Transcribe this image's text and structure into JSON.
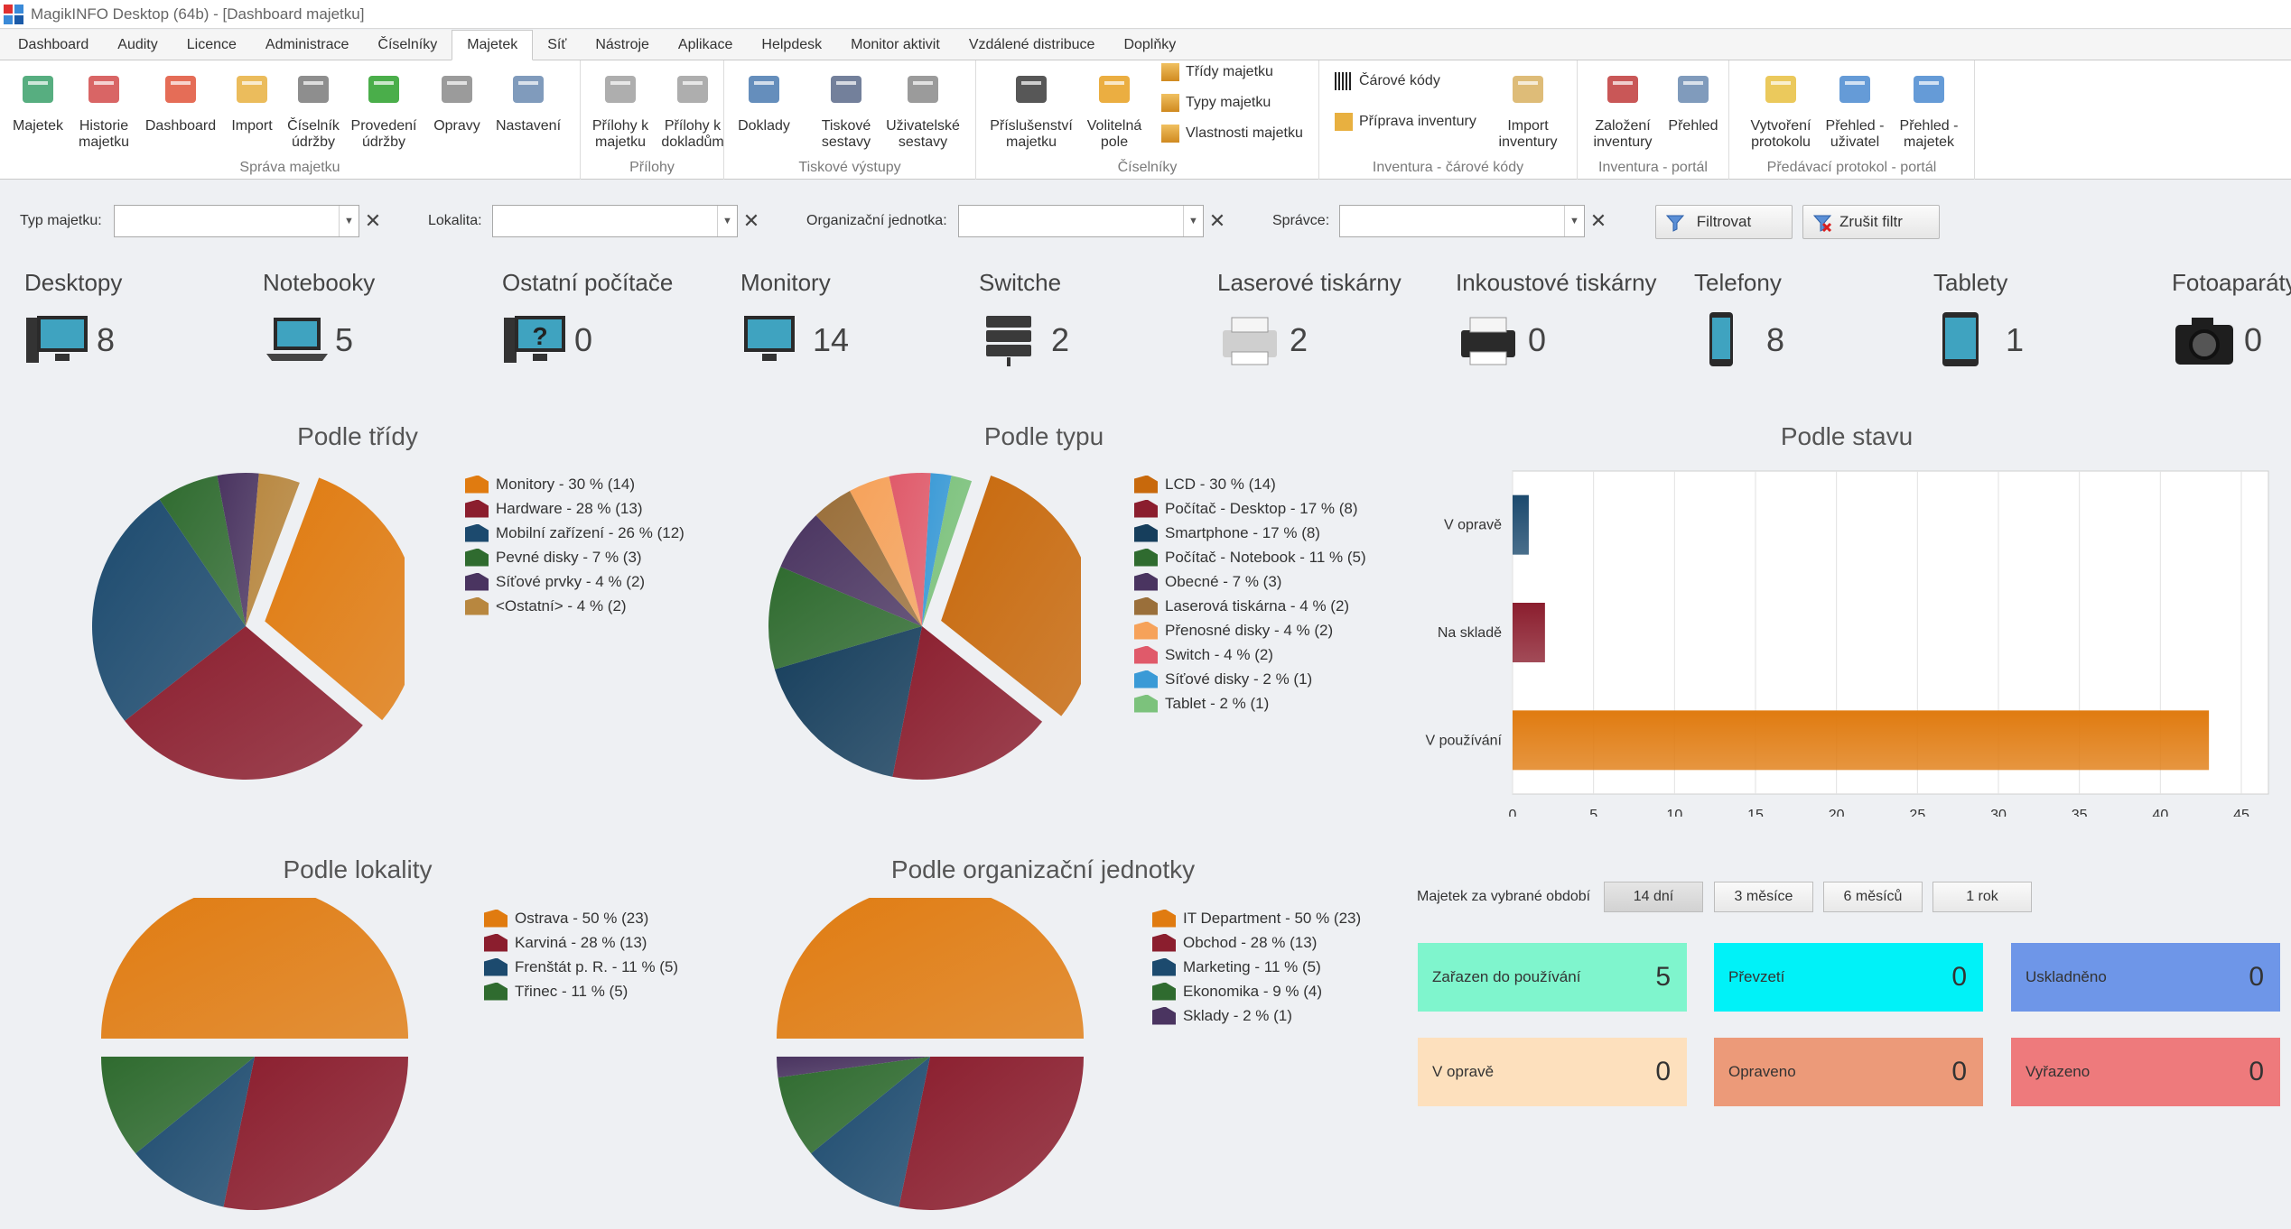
{
  "window": {
    "title": "MagikINFO Desktop (64b) - [Dashboard majetku]"
  },
  "menu": [
    "Dashboard",
    "Audity",
    "Licence",
    "Administrace",
    "Číselníky",
    "Majetek",
    "Síť",
    "Nástroje",
    "Aplikace",
    "Helpdesk",
    "Monitor aktivit",
    "Vzdálené distribuce",
    "Doplňky"
  ],
  "menu_active": "Majetek",
  "ribbon": {
    "groups": [
      "Správa majetku",
      "Přílohy",
      "Tiskové výstupy",
      "Číselníky",
      "Inventura - čárové kódy",
      "Inventura - portál",
      "Předávací protokol - portál"
    ],
    "buttons": [
      [
        "Majetek",
        ""
      ],
      [
        "Historie",
        "majetku"
      ],
      [
        "Dashboard",
        ""
      ],
      [
        "Import",
        ""
      ],
      [
        "Číselník",
        "údržby"
      ],
      [
        "Provedení",
        "údržby"
      ],
      [
        "Opravy",
        ""
      ],
      [
        "Nastavení",
        ""
      ],
      [
        "Přílohy k",
        "majetku"
      ],
      [
        "Přílohy k",
        "dokladům"
      ],
      [
        "Doklady",
        ""
      ],
      [
        "Tiskové",
        "sestavy"
      ],
      [
        "Uživatelské",
        "sestavy"
      ],
      [
        "Příslušenství",
        "majetku"
      ],
      [
        "Volitelná",
        "pole"
      ],
      [
        "Import",
        "inventury"
      ],
      [
        "Založení",
        "inventury"
      ],
      [
        "Přehled",
        ""
      ],
      [
        "Vytvoření",
        "protokolu"
      ],
      [
        "Přehled -",
        "uživatel"
      ],
      [
        "Přehled -",
        "majetek"
      ]
    ],
    "small": [
      "Třídy majetku",
      "Typy majetku",
      "Vlastnosti majetku",
      "Čárové kódy",
      "Příprava inventury"
    ]
  },
  "filters": {
    "labels": [
      "Typ majetku:",
      "Lokalita:",
      "Organizační jednotka:",
      "Správce:"
    ],
    "filter_btn": "Filtrovat",
    "clear_btn": "Zrušit filtr"
  },
  "categories": [
    {
      "name": "Desktopy",
      "count": "8",
      "icon": "desktop-icon"
    },
    {
      "name": "Notebooky",
      "count": "5",
      "icon": "laptop-icon"
    },
    {
      "name": "Ostatní počítače",
      "count": "0",
      "icon": "unknown-computer-icon"
    },
    {
      "name": "Monitory",
      "count": "14",
      "icon": "monitor-icon"
    },
    {
      "name": "Switche",
      "count": "2",
      "icon": "switch-icon"
    },
    {
      "name": "Laserové tiskárny",
      "count": "2",
      "icon": "laser-printer-icon"
    },
    {
      "name": "Inkoustové tiskárny",
      "count": "0",
      "icon": "inkjet-printer-icon"
    },
    {
      "name": "Telefony",
      "count": "8",
      "icon": "phone-icon"
    },
    {
      "name": "Tablety",
      "count": "1",
      "icon": "tablet-icon"
    },
    {
      "name": "Fotoaparáty",
      "count": "0",
      "icon": "camera-icon"
    }
  ],
  "chart_data": [
    {
      "type": "pie",
      "title": "Podle třídy",
      "labels": [
        "Monitory - 30 % (14)",
        "Hardware - 28 % (13)",
        "Mobilní zařízení - 26 % (12)",
        "Pevné disky - 7 % (3)",
        "Síťové prvky - 4 % (2)",
        "<Ostatní> - 4 % (2)"
      ],
      "values": [
        14,
        13,
        12,
        3,
        2,
        2
      ],
      "colors": [
        "#e07b10",
        "#8b1e2e",
        "#1c4a6e",
        "#2f6b2f",
        "#4a3460",
        "#b8873f"
      ],
      "explode": [
        0
      ]
    },
    {
      "type": "pie",
      "title": "Podle typu",
      "labels": [
        "LCD - 30 % (14)",
        "Počítač - Desktop - 17 % (8)",
        "Smartphone - 17 % (8)",
        "Počítač - Notebook - 11 % (5)",
        "Obecné - 7 % (3)",
        "Laserová tiskárna - 4 % (2)",
        "Přenosné disky - 4 % (2)",
        "Switch - 4 % (2)",
        "Síťové disky - 2 % (1)",
        "Tablet - 2 % (1)"
      ],
      "values": [
        14,
        8,
        8,
        5,
        3,
        2,
        2,
        2,
        1,
        1
      ],
      "colors": [
        "#c8690c",
        "#8b1e2e",
        "#163e5c",
        "#2f6b2f",
        "#4a3460",
        "#9a6f3a",
        "#f6a25a",
        "#e05a6a",
        "#3a9ad6",
        "#7cc27c"
      ],
      "explode": [
        0
      ]
    },
    {
      "type": "bar",
      "orientation": "horizontal",
      "title": "Podle stavu",
      "categories": [
        "V opravě",
        "Na skladě",
        "V používání"
      ],
      "values": [
        1,
        2,
        43
      ],
      "colors": [
        "#1c4a6e",
        "#8b1e2e",
        "#e07b10"
      ],
      "xlim": [
        0,
        45
      ],
      "xticks": [
        0,
        5,
        10,
        15,
        20,
        25,
        30,
        35,
        40,
        45
      ],
      "grid": true
    },
    {
      "type": "pie",
      "title": "Podle lokality",
      "labels": [
        "Ostrava - 50 % (23)",
        "Karviná - 28 % (13)",
        "Frenštát p. R. - 11 % (5)",
        "Třinec - 11 % (5)"
      ],
      "values": [
        23,
        13,
        5,
        5
      ],
      "colors": [
        "#e07b10",
        "#8b1e2e",
        "#1c4a6e",
        "#2f6b2f"
      ],
      "explode": [
        0
      ]
    },
    {
      "type": "pie",
      "title": "Podle organizační jednotky",
      "labels": [
        "IT Department - 50 % (23)",
        "Obchod - 28 % (13)",
        "Marketing - 11 % (5)",
        "Ekonomika - 9 % (4)",
        "Sklady - 2 % (1)"
      ],
      "values": [
        23,
        13,
        5,
        4,
        1
      ],
      "colors": [
        "#e07b10",
        "#8b1e2e",
        "#1c4a6e",
        "#2f6b2f",
        "#4a3460"
      ],
      "explode": [
        0
      ]
    }
  ],
  "period": {
    "label": "Majetek za vybrané období",
    "options": [
      "14 dní",
      "3 měsíce",
      "6 měsíců",
      "1 rok"
    ],
    "selected": "14 dní"
  },
  "tiles": [
    {
      "label": "Zařazen do používání",
      "value": "5",
      "color": "#7ff5cd"
    },
    {
      "label": "Převzetí",
      "value": "0",
      "color": "#00f2f8"
    },
    {
      "label": "Uskladněno",
      "value": "0",
      "color": "#6e96e8"
    },
    {
      "label": "V opravě",
      "value": "0",
      "color": "#fde0bd"
    },
    {
      "label": "Opraveno",
      "value": "0",
      "color": "#ec9a79"
    },
    {
      "label": "Vyřazeno",
      "value": "0",
      "color": "#ee7a7c"
    }
  ]
}
